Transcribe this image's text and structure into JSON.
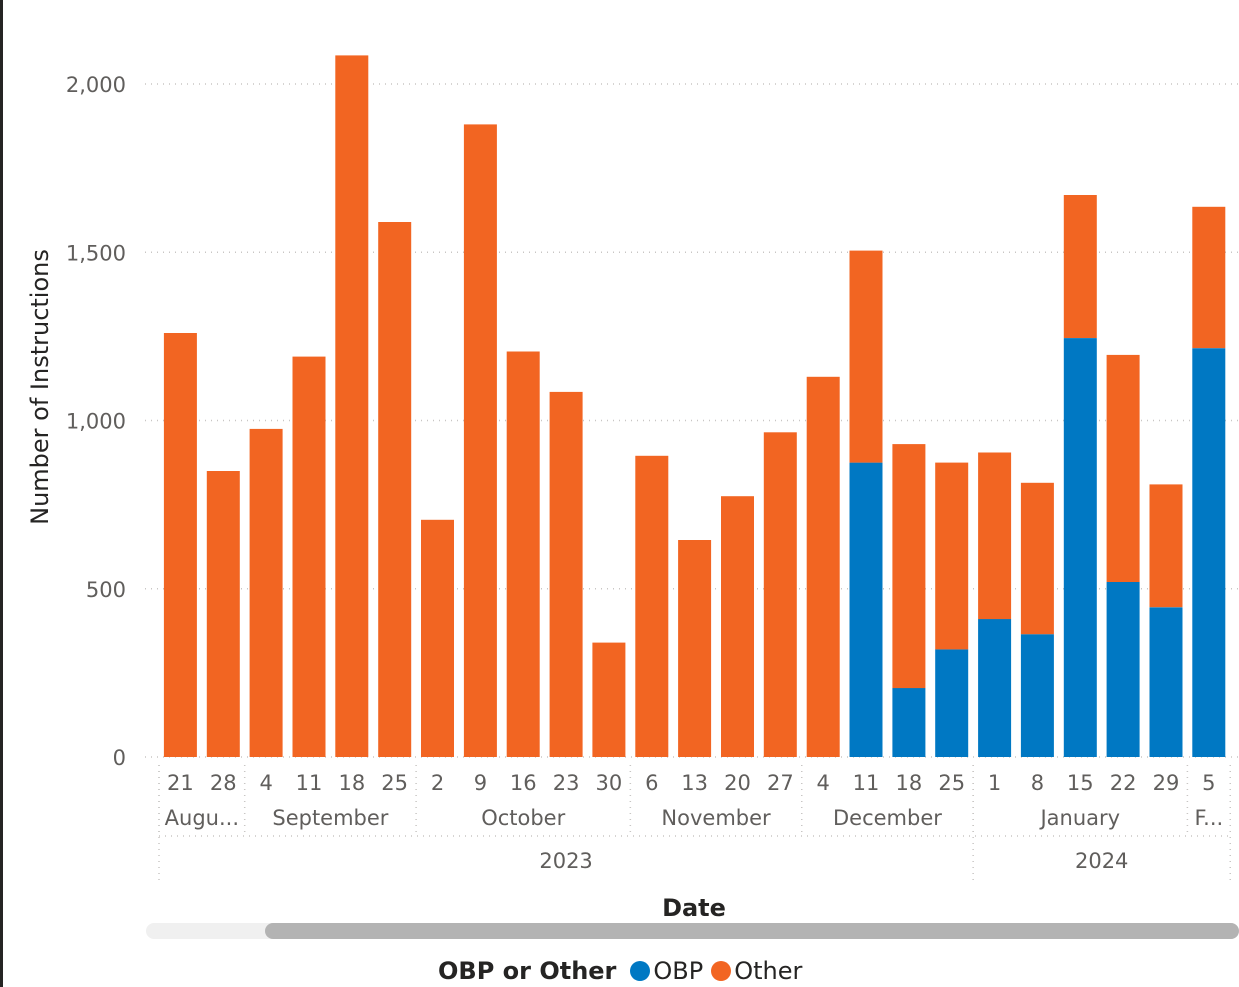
{
  "colors": {
    "OBP": "#0078C3",
    "Other": "#F26522",
    "grid": "#c8c6c4",
    "text": "#252423",
    "tick": "#605e5c"
  },
  "legend": {
    "title": "OBP or Other",
    "items": [
      {
        "key": "OBP",
        "label": "OBP"
      },
      {
        "key": "Other",
        "label": "Other"
      }
    ]
  },
  "chart_data": {
    "type": "bar",
    "stacked": true,
    "ylabel": "Number of Instructions",
    "xlabel": "Date",
    "ylim": [
      0,
      2100
    ],
    "yticks": [
      0,
      500,
      1000,
      1500,
      2000
    ],
    "ytick_labels": [
      "0",
      "500",
      "1,000",
      "1,500",
      "2,000"
    ],
    "grid": true,
    "legend_position": "bottom",
    "categories": [
      "21",
      "28",
      "4",
      "11",
      "18",
      "25",
      "2",
      "9",
      "16",
      "23",
      "30",
      "6",
      "13",
      "20",
      "27",
      "4",
      "11",
      "18",
      "25",
      "1",
      "8",
      "15",
      "22",
      "29",
      "5"
    ],
    "series": [
      {
        "name": "OBP",
        "values": [
          0,
          0,
          0,
          0,
          0,
          0,
          0,
          0,
          0,
          0,
          0,
          0,
          0,
          0,
          0,
          0,
          875,
          205,
          320,
          410,
          365,
          1245,
          520,
          445,
          1215
        ]
      },
      {
        "name": "Other",
        "values": [
          1260,
          850,
          975,
          1190,
          2085,
          1590,
          705,
          1880,
          1205,
          1085,
          340,
          895,
          645,
          775,
          965,
          1130,
          630,
          725,
          555,
          495,
          450,
          425,
          675,
          365,
          420
        ]
      }
    ],
    "months": [
      {
        "label": "Augu...",
        "start": 0,
        "end": 1
      },
      {
        "label": "September",
        "start": 2,
        "end": 5
      },
      {
        "label": "October",
        "start": 6,
        "end": 10
      },
      {
        "label": "November",
        "start": 11,
        "end": 14
      },
      {
        "label": "December",
        "start": 15,
        "end": 18
      },
      {
        "label": "January",
        "start": 19,
        "end": 23
      },
      {
        "label": "F...",
        "start": 24,
        "end": 24
      }
    ],
    "years": [
      {
        "label": "2023",
        "start": 0,
        "end": 18
      },
      {
        "label": "2024",
        "start": 19,
        "end": 24
      }
    ]
  }
}
